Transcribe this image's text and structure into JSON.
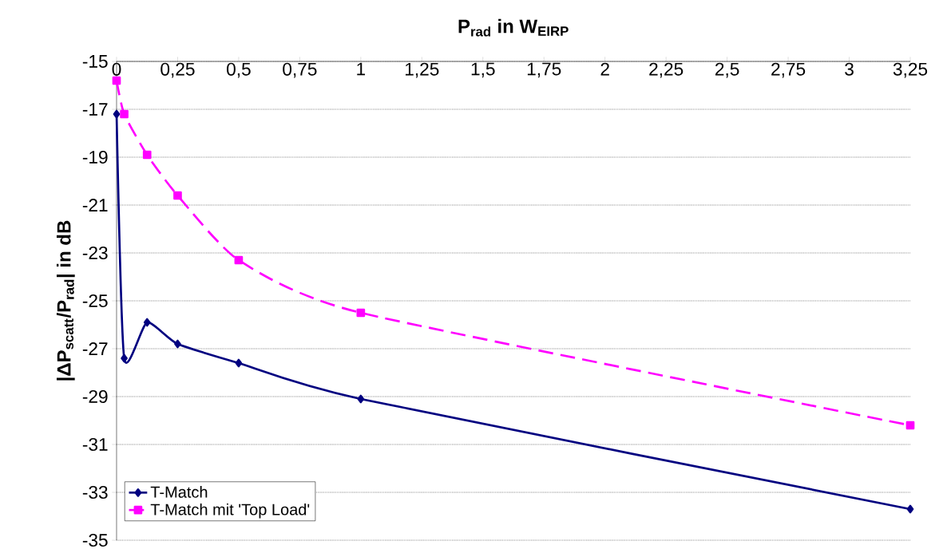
{
  "chart_data": {
    "type": "line",
    "xlabel": "P$_{rad}$ in W$_{EIRP}$",
    "ylabel": "|ΔP$_{scatt}$/P$_{rad}$| in dB",
    "x": [
      0,
      0.03125,
      0.125,
      0.25,
      0.5,
      1,
      3.25
    ],
    "series": [
      {
        "name": "T-Match",
        "color": "#000080",
        "marker": "diamond",
        "line_style": "solid",
        "values": [
          -17.2,
          -27.4,
          -25.9,
          -26.8,
          -27.6,
          -29.1,
          -33.7
        ]
      },
      {
        "name": "T-Match mit 'Top Load'",
        "color": "#ff00ff",
        "marker": "square",
        "line_style": "dashed",
        "values": [
          -15.8,
          -17.2,
          -18.9,
          -20.6,
          -23.3,
          -25.5,
          -30.2
        ]
      }
    ],
    "xlim": [
      0,
      3.25
    ],
    "xticks": [
      0,
      {
        "value": 0.25,
        "label": "0,25"
      },
      {
        "value": 0.5,
        "label": "0,5"
      },
      {
        "value": 0.75,
        "label": "0,75"
      },
      1,
      {
        "value": 1.25,
        "label": "1,25"
      },
      {
        "value": 1.5,
        "label": "1,5"
      },
      {
        "value": 1.75,
        "label": "1,75"
      },
      2,
      {
        "value": 2.25,
        "label": "2,25"
      },
      {
        "value": 2.5,
        "label": "2,5"
      },
      {
        "value": 2.75,
        "label": "2,75"
      },
      3,
      {
        "value": 3.25,
        "label": "3,25"
      }
    ],
    "ylim": [
      -35,
      -15
    ],
    "yticks": [
      -35,
      -33,
      -31,
      -29,
      -27,
      -25,
      -23,
      -21,
      -19,
      -17,
      -15
    ],
    "grid": "y",
    "legend": "bottom left"
  }
}
